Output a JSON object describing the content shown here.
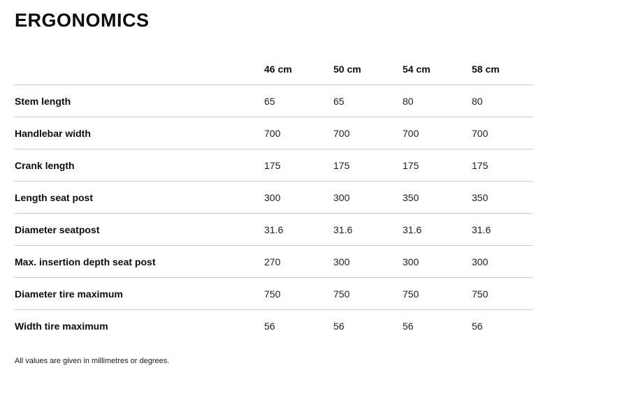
{
  "page": {
    "title": "ERGONOMICS",
    "footnote": "All values are given in millimetres or degrees."
  },
  "colors": {
    "background": "#ffffff",
    "text": "#1a1a1a",
    "heading": "#0d0d0d",
    "divider": "#c9c9c9"
  },
  "table": {
    "columns": [
      "46 cm",
      "50 cm",
      "54 cm",
      "58 cm"
    ],
    "rows": [
      {
        "label": "Stem length",
        "values": [
          "65",
          "65",
          "80",
          "80"
        ]
      },
      {
        "label": "Handlebar width",
        "values": [
          "700",
          "700",
          "700",
          "700"
        ]
      },
      {
        "label": "Crank length",
        "values": [
          "175",
          "175",
          "175",
          "175"
        ]
      },
      {
        "label": "Length seat post",
        "values": [
          "300",
          "300",
          "350",
          "350"
        ]
      },
      {
        "label": "Diameter seatpost",
        "values": [
          "31.6",
          "31.6",
          "31.6",
          "31.6"
        ]
      },
      {
        "label": "Max. insertion depth seat post",
        "values": [
          "270",
          "300",
          "300",
          "300"
        ]
      },
      {
        "label": "Diameter tire maximum",
        "values": [
          "750",
          "750",
          "750",
          "750"
        ]
      },
      {
        "label": "Width tire maximum",
        "values": [
          "56",
          "56",
          "56",
          "56"
        ]
      }
    ]
  }
}
